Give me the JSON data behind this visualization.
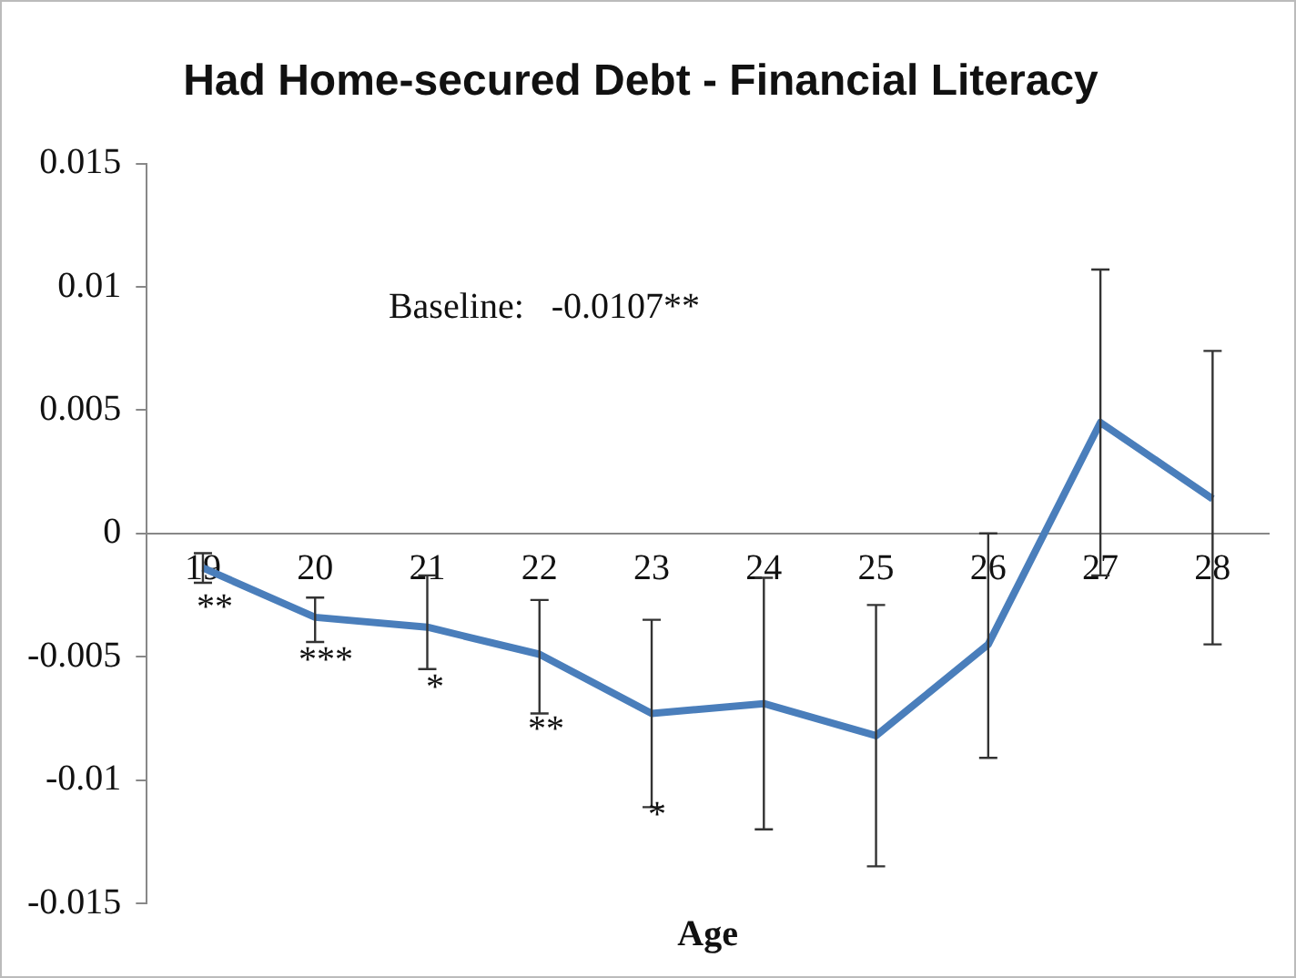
{
  "chart_data": {
    "type": "line",
    "title": "Had Home-secured Debt - Financial Literacy",
    "xlabel": "Age",
    "categories": [
      "19",
      "20",
      "21",
      "22",
      "23",
      "24",
      "25",
      "26",
      "27",
      "28"
    ],
    "series": [
      {
        "color": "#4a7ebb",
        "values": [
          -0.0014,
          -0.0034,
          -0.0038,
          -0.0049,
          -0.0073,
          -0.0069,
          -0.0082,
          -0.0045,
          0.0045,
          0.0014
        ],
        "errors": [
          [
            -0.002,
            -0.0008
          ],
          [
            -0.0044,
            -0.0026
          ],
          [
            -0.0055,
            -0.0017
          ],
          [
            -0.0073,
            -0.0027
          ],
          [
            -0.0111,
            -0.0035
          ],
          [
            -0.012,
            -0.0018
          ],
          [
            -0.0135,
            -0.0029
          ],
          [
            -0.0091,
            0
          ],
          [
            -0.0017,
            0.0107
          ],
          [
            -0.0045,
            0.0074
          ]
        ]
      }
    ],
    "ylim": [
      -0.015,
      0.015
    ],
    "yticks": [
      -0.015,
      -0.01,
      -0.005,
      0,
      0.005,
      0.01,
      0.015
    ],
    "grid": false,
    "legend": false,
    "marker": "none",
    "line_style": "solid",
    "annotations": [
      "Baseline:   -0.0107**",
      "**",
      "***",
      "*",
      "**",
      "*"
    ]
  }
}
